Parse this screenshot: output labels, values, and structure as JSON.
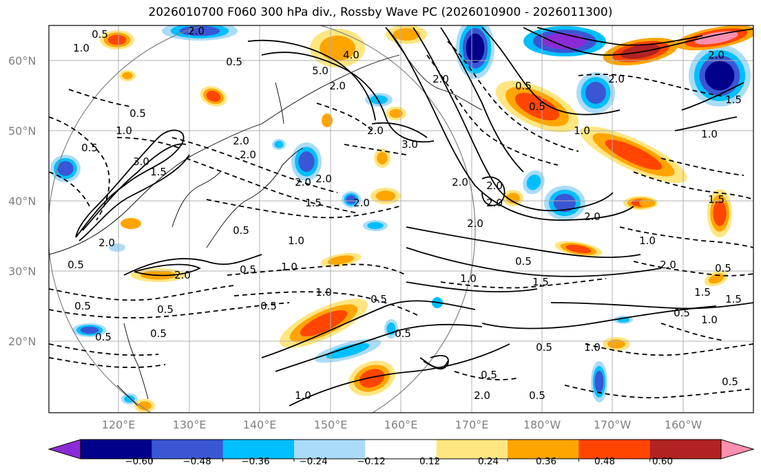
{
  "title": "2026010700 F060 300 hPa div., Rossby Wave PC (2026010900 - 2026011300)",
  "lat_labels": [
    "60°N",
    "50°N",
    "40°N",
    "30°N",
    "20°N"
  ],
  "lon_labels": [
    "120°E",
    "130°E",
    "140°E",
    "150°E",
    "160°E",
    "170°E",
    "180°W",
    "170°W",
    "160°W"
  ],
  "colorbar": {
    "ticks": [
      "−0.60",
      "−0.48",
      "−0.36",
      "−0.24",
      "−0.12",
      "0.12",
      "0.24",
      "0.36",
      "0.48",
      "0.60"
    ],
    "colors": [
      "#8b2bd6",
      "#00008b",
      "#3a56d4",
      "#00bfff",
      "#aadcf8",
      "#ffffff",
      "#ffe680",
      "#ffa500",
      "#ff4500",
      "#b22222",
      "#ff8fb0"
    ]
  },
  "contour_labels": [
    "0.5",
    "1.0",
    "1.5",
    "2.0",
    "3.0",
    "4.0",
    "5.0"
  ],
  "palette": {
    "red": "#ff4500",
    "orange": "#ffa500",
    "yellow": "#ffe680",
    "lightblue": "#aadcf8",
    "cyan": "#00bfff",
    "blue": "#3a56d4",
    "navy": "#00008b",
    "purple": "#8b2bd6",
    "pink": "#ff8fb0"
  }
}
